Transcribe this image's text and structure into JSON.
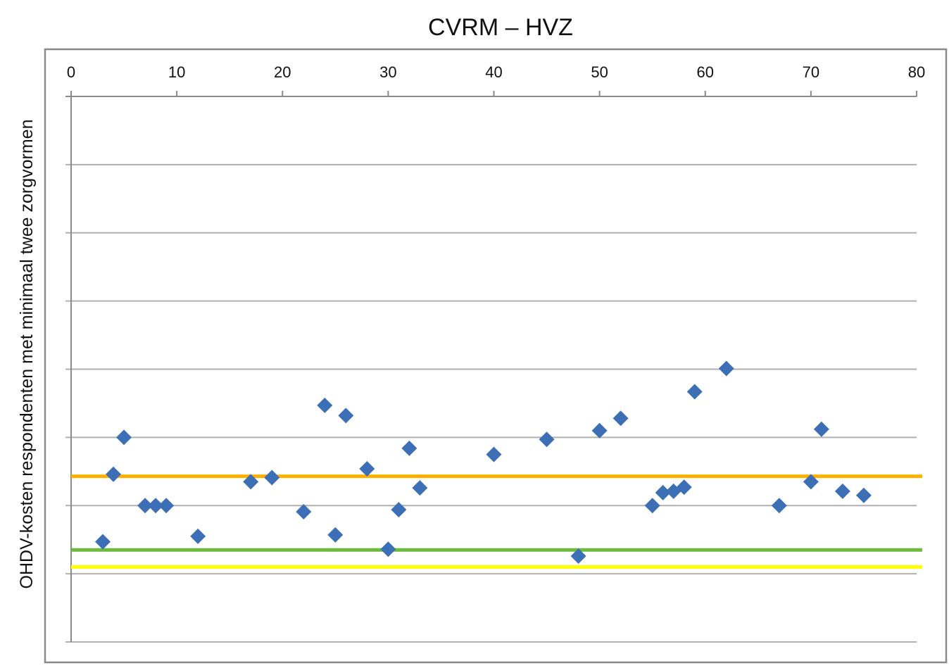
{
  "chart_data": {
    "type": "scatter",
    "title": "CVRM – HVZ",
    "xlabel": "",
    "ylabel": "OHDV-kosten respondenten met minimaal twee zorgvormen",
    "xlim": [
      0,
      80
    ],
    "x_ticks": [
      "0",
      "10",
      "20",
      "30",
      "40",
      "50",
      "60",
      "70",
      "80"
    ],
    "x_axis_position": "top",
    "ylim": [
      0,
      8
    ],
    "y_ticks_labeled": false,
    "grid": true,
    "marker": "diamond",
    "series": [
      {
        "color": "#3d6fb6",
        "points": [
          [
            3,
            1.47
          ],
          [
            4,
            2.46
          ],
          [
            5,
            3.0
          ],
          [
            7,
            2.0
          ],
          [
            8,
            2.0
          ],
          [
            9,
            2.0
          ],
          [
            12,
            1.55
          ],
          [
            17,
            2.35
          ],
          [
            19,
            2.41
          ],
          [
            22,
            1.91
          ],
          [
            24,
            3.47
          ],
          [
            25,
            1.57
          ],
          [
            26,
            3.32
          ],
          [
            28,
            2.54
          ],
          [
            30,
            1.36
          ],
          [
            31,
            1.94
          ],
          [
            32,
            2.84
          ],
          [
            33,
            2.26
          ],
          [
            40,
            2.75
          ],
          [
            45,
            2.97
          ],
          [
            48,
            1.26
          ],
          [
            50,
            3.1
          ],
          [
            52,
            3.28
          ],
          [
            55,
            2.0
          ],
          [
            56,
            2.19
          ],
          [
            57,
            2.21
          ],
          [
            58,
            2.27
          ],
          [
            59,
            3.67
          ],
          [
            62,
            4.01
          ],
          [
            67,
            2.0
          ],
          [
            70,
            2.35
          ],
          [
            71,
            3.12
          ],
          [
            73,
            2.21
          ],
          [
            75,
            2.15
          ]
        ]
      }
    ],
    "reference_lines": [
      {
        "y": 2.43,
        "color": "#ffb000"
      },
      {
        "y": 1.35,
        "color": "#6dbb3c"
      },
      {
        "y": 1.1,
        "color": "#ffff00"
      }
    ]
  }
}
